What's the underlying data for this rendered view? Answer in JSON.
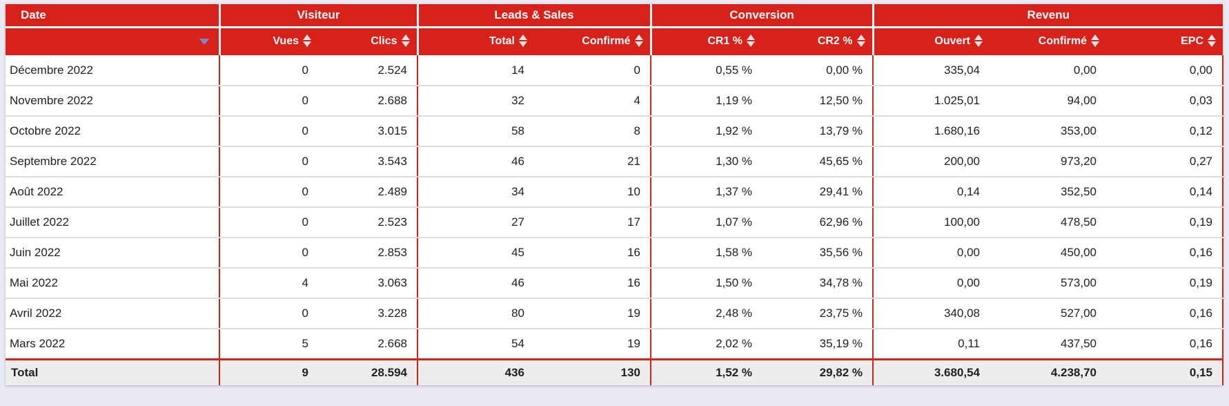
{
  "colors": {
    "header_red": "#d6221b",
    "divider_red": "#cb2318",
    "total_row_bg": "#ededed",
    "page_background": "#e8e9f1",
    "filter_icon_blue": "#7b88d2"
  },
  "table": {
    "groups": [
      {
        "label": "Date"
      },
      {
        "label": "Visiteur"
      },
      {
        "label": "Leads & Sales"
      },
      {
        "label": "Conversion"
      },
      {
        "label": "Revenu"
      }
    ],
    "columns": [
      {
        "key": "vues",
        "label": "Vues"
      },
      {
        "key": "clics",
        "label": "Clics"
      },
      {
        "key": "leads-total",
        "label": "Total"
      },
      {
        "key": "leads-confirme",
        "label": "Confirmé"
      },
      {
        "key": "cr1",
        "label": "CR1 %"
      },
      {
        "key": "cr2",
        "label": "CR2 %"
      },
      {
        "key": "revenu-ouvert",
        "label": "Ouvert"
      },
      {
        "key": "revenu-confirme",
        "label": "Confirmé"
      },
      {
        "key": "epc",
        "label": "EPC"
      }
    ],
    "rows": [
      {
        "date": "Décembre 2022",
        "values": [
          "0",
          "2.524",
          "14",
          "0",
          "0,55 %",
          "0,00 %",
          "335,04",
          "0,00",
          "0,00"
        ]
      },
      {
        "date": "Novembre 2022",
        "values": [
          "0",
          "2.688",
          "32",
          "4",
          "1,19 %",
          "12,50 %",
          "1.025,01",
          "94,00",
          "0,03"
        ]
      },
      {
        "date": "Octobre 2022",
        "values": [
          "0",
          "3.015",
          "58",
          "8",
          "1,92 %",
          "13,79 %",
          "1.680,16",
          "353,00",
          "0,12"
        ]
      },
      {
        "date": "Septembre 2022",
        "values": [
          "0",
          "3.543",
          "46",
          "21",
          "1,30 %",
          "45,65 %",
          "200,00",
          "973,20",
          "0,27"
        ]
      },
      {
        "date": "Août 2022",
        "values": [
          "0",
          "2.489",
          "34",
          "10",
          "1,37 %",
          "29,41 %",
          "0,14",
          "352,50",
          "0,14"
        ]
      },
      {
        "date": "Juillet 2022",
        "values": [
          "0",
          "2.523",
          "27",
          "17",
          "1,07 %",
          "62,96 %",
          "100,00",
          "478,50",
          "0,19"
        ]
      },
      {
        "date": "Juin 2022",
        "values": [
          "0",
          "2.853",
          "45",
          "16",
          "1,58 %",
          "35,56 %",
          "0,00",
          "450,00",
          "0,16"
        ]
      },
      {
        "date": "Mai 2022",
        "values": [
          "4",
          "3.063",
          "46",
          "16",
          "1,50 %",
          "34,78 %",
          "0,00",
          "573,00",
          "0,19"
        ]
      },
      {
        "date": "Avril 2022",
        "values": [
          "0",
          "3.228",
          "80",
          "19",
          "2,48 %",
          "23,75 %",
          "340,08",
          "527,00",
          "0,16"
        ]
      },
      {
        "date": "Mars 2022",
        "values": [
          "5",
          "2.668",
          "54",
          "19",
          "2,02 %",
          "35,19 %",
          "0,11",
          "437,50",
          "0,16"
        ]
      }
    ],
    "total": {
      "label": "Total",
      "values": [
        "9",
        "28.594",
        "436",
        "130",
        "1,52 %",
        "29,82 %",
        "3.680,54",
        "4.238,70",
        "0,15"
      ]
    }
  }
}
